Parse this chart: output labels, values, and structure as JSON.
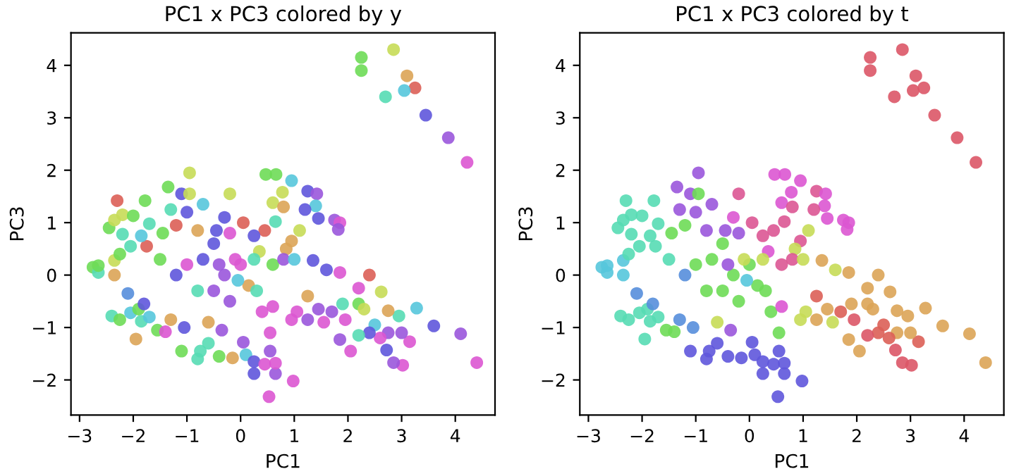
{
  "chart_data": [
    {
      "type": "scatter",
      "title": "PC1 x PC3 colored by y",
      "xlabel": "PC1",
      "ylabel": "PC3",
      "marker": "circle",
      "xlim": [
        -3.16,
        4.74
      ],
      "ylim": [
        -2.67,
        4.62
      ],
      "xticks": [
        -3,
        -2,
        -1,
        0,
        1,
        2,
        3,
        4
      ],
      "yticks": [
        -2,
        -1,
        0,
        1,
        2,
        3,
        4
      ],
      "x": [
        2.25,
        2.25,
        2.85,
        3.1,
        3.25,
        2.7,
        3.05,
        3.45,
        3.87,
        4.22,
        4.4,
        4.1,
        3.6,
        3.28,
        3.15,
        3.0,
        3.02,
        2.85,
        2.95,
        2.72,
        2.75,
        2.62,
        2.6,
        2.75,
        2.5,
        2.4,
        2.2,
        2.2,
        2.3,
        2.05,
        1.85,
        2.4,
        2.2,
        1.95,
        1.9,
        1.85,
        1.6,
        1.7,
        1.45,
        1.55,
        1.35,
        1.25,
        1.05,
        0.95,
        1.25,
        0.47,
        0.66,
        0.95,
        1.25,
        1.42,
        0.78,
        1.4,
        1.2,
        1.45,
        1.75,
        1.85,
        1.82,
        0.6,
        0.45,
        0.25,
        0.05,
        0.35,
        0.8,
        0.65,
        0.95,
        0.85,
        0.6,
        1.1,
        0.8,
        -2.75,
        -2.65,
        -2.65,
        -2.35,
        -2.35,
        -2.3,
        -2.45,
        -2.35,
        -2.2,
        -2.2,
        -2.25,
        -2.0,
        -2.05,
        -1.78,
        -1.7,
        -1.75,
        -1.85,
        -2.1,
        -2.4,
        -2.25,
        -2.05,
        -1.95,
        -1.85,
        -1.9,
        -1.7,
        -1.55,
        -1.4,
        -1.8,
        -1.1,
        -0.8,
        -0.75,
        -0.4,
        -0.15,
        0.05,
        0.1,
        0.25,
        0.25,
        0.45,
        0.55,
        0.65,
        0.65,
        0.98,
        0.53,
        0.55,
        -0.6,
        -1.05,
        -1.3,
        -0.35,
        -0.95,
        -1.35,
        -1.1,
        -0.95,
        -0.7,
        -1.3,
        -0.2,
        -0.3,
        -0.2,
        -0.45,
        -0.8,
        -1.0,
        -1.45,
        -1.2,
        -1.0,
        -0.7,
        -0.5,
        -0.3,
        0.0,
        0.15,
        0.3,
        -0.5,
        -0.8,
        -0.2,
        -0.4,
        0.4,
        -0.6,
        -1.2,
        -1.5,
        0.6,
        1.0,
        -0.1,
        0.25,
        -0.05
      ],
      "values": [
        4.15,
        3.9,
        4.3,
        3.8,
        3.57,
        3.4,
        3.52,
        3.05,
        2.62,
        2.15,
        -1.67,
        -1.12,
        -0.97,
        -0.63,
        -1.27,
        -1.1,
        -1.72,
        -1.67,
        -0.78,
        -1.43,
        -1.1,
        -0.32,
        -1.2,
        -0.68,
        -0.95,
        -1.1,
        -1.15,
        -0.55,
        -0.65,
        -1.45,
        -1.23,
        0.0,
        -0.25,
        -0.85,
        -0.55,
        0.05,
        0.1,
        -0.7,
        -0.65,
        -0.9,
        0.28,
        -0.4,
        -0.7,
        -0.85,
        -0.85,
        1.92,
        1.92,
        1.8,
        1.6,
        1.55,
        1.58,
        1.32,
        1.25,
        1.08,
        1.05,
        1.0,
        0.87,
        1.38,
        0.85,
        0.75,
        1.0,
        0.45,
        1.3,
        1.02,
        0.65,
        0.5,
        0.2,
        0.85,
        0.3,
        0.15,
        0.05,
        0.18,
        0.28,
        0.0,
        1.42,
        0.9,
        1.05,
        1.15,
        0.78,
        0.4,
        1.13,
        0.55,
        1.42,
        0.98,
        0.55,
        0.75,
        -0.35,
        -0.78,
        -0.85,
        -0.72,
        -1.22,
        -0.88,
        -0.65,
        -0.8,
        -1.05,
        -1.08,
        -0.55,
        -1.45,
        -1.6,
        -1.45,
        -1.55,
        -1.58,
        -1.28,
        -1.52,
        -1.88,
        -1.65,
        -1.7,
        -1.45,
        -1.88,
        -1.68,
        -2.02,
        -2.32,
        -1.1,
        -1.3,
        -1.0,
        -0.85,
        -1.05,
        1.95,
        1.68,
        1.55,
        1.55,
        1.35,
        1.25,
        1.55,
        1.1,
        0.8,
        0.85,
        0.85,
        1.2,
        0.8,
        0.95,
        0.2,
        0.3,
        0.6,
        0.0,
        0.2,
        -0.2,
        -0.3,
        -0.3,
        -0.3,
        -0.5,
        0.2,
        -0.7,
        -0.9,
        0.0,
        0.3,
        -0.6,
        0.3,
        0.3,
        0.3,
        -0.1
      ],
      "colors": [
        "#6edb57",
        "#6edb57",
        "#c6db57",
        "#dba457",
        "#db5f57",
        "#57dbb4",
        "#57c6db",
        "#5f57db",
        "#9a57db",
        "#db57d2",
        "#db57d2",
        "#9a57db",
        "#5f57db",
        "#57c6db",
        "#db57d2",
        "#9a57db",
        "#db57d2",
        "#9a57db",
        "#57dbb4",
        "#5f57db",
        "#9a57db",
        "#c6db57",
        "#db57d2",
        "#dba457",
        "#57c6db",
        "#5f57db",
        "#57dbb4",
        "#6edb57",
        "#c6db57",
        "#db57d2",
        "#9a57db",
        "#db5f57",
        "#db57d2",
        "#db57d2",
        "#57dbb4",
        "#db57d2",
        "#5f57db",
        "#9a57db",
        "#9a57db",
        "#db57d2",
        "#5f57db",
        "#dba457",
        "#db57d2",
        "#db57d2",
        "#9a57db",
        "#6edb57",
        "#6edb57",
        "#57c6db",
        "#5f57db",
        "#9a57db",
        "#c6db57",
        "#57c6db",
        "#5f57db",
        "#5f57db",
        "#9a57db",
        "#db57d2",
        "#9a57db",
        "#c6db57",
        "#db5f57",
        "#5f57db",
        "#db5f57",
        "#c6db57",
        "#dba457",
        "#57dbb4",
        "#dba457",
        "#dba457",
        "#6edb57",
        "#c6db57",
        "#9a57db",
        "#6edb57",
        "#57dbb4",
        "#6edb57",
        "#c6db57",
        "#dba457",
        "#db5f57",
        "#6edb57",
        "#c6db57",
        "#c6db57",
        "#57dbb4",
        "#6edb57",
        "#6edb57",
        "#57dbb4",
        "#6edb57",
        "#57dbb4",
        "#db5f57",
        "#57c6db",
        "#578edb",
        "#57dbb4",
        "#6edb57",
        "#57c6db",
        "#dba457",
        "#57dbb4",
        "#6edb57",
        "#57c6db",
        "#6edb57",
        "#db57d2",
        "#5f57db",
        "#6edb57",
        "#57dbb4",
        "#57dbb4",
        "#6edb57",
        "#dba457",
        "#9a57db",
        "#57c6db",
        "#5f57db",
        "#5f57db",
        "#db57d2",
        "#9a57db",
        "#9a57db",
        "#db57d2",
        "#db57d2",
        "#db57d2",
        "#db57d2",
        "#57dbb4",
        "#5f57db",
        "#dba457",
        "#9a57db",
        "#c6db57",
        "#6edb57",
        "#5f57db",
        "#c6db57",
        "#57c6db",
        "#57dbb4",
        "#c6db57",
        "#5f57db",
        "#db57d2",
        "#5f57db",
        "#dba457",
        "#5f57db",
        "#6edb57",
        "#db5f57",
        "#db57d2",
        "#5f57db",
        "#5f57db",
        "#9a57db",
        "#db57d2",
        "#dba457",
        "#57dbb4",
        "#9a57db",
        "#57dbb4",
        "#9a57db",
        "#9a57db",
        "#db57d2",
        "#dba457",
        "#5f57db",
        "#6edb57",
        "#db57d2",
        "#57c6db",
        "#db57d2",
        "#57dbb4",
        "#57c6db"
      ]
    },
    {
      "type": "scatter",
      "title": "PC1 x PC3 colored by t",
      "xlabel": "PC1",
      "ylabel": "PC3",
      "marker": "circle",
      "xlim": [
        -3.16,
        4.74
      ],
      "ylim": [
        -2.67,
        4.62
      ],
      "xticks": [
        -3,
        -2,
        -1,
        0,
        1,
        2,
        3,
        4
      ],
      "yticks": [
        -2,
        -1,
        0,
        1,
        2,
        3,
        4
      ],
      "x": [
        2.25,
        2.25,
        2.85,
        3.1,
        3.25,
        2.7,
        3.05,
        3.45,
        3.87,
        4.22,
        4.4,
        4.1,
        3.6,
        3.28,
        3.15,
        3.0,
        3.02,
        2.85,
        2.95,
        2.72,
        2.75,
        2.62,
        2.6,
        2.75,
        2.5,
        2.4,
        2.2,
        2.2,
        2.3,
        2.05,
        1.85,
        2.4,
        2.2,
        1.95,
        1.9,
        1.85,
        1.6,
        1.7,
        1.45,
        1.55,
        1.35,
        1.25,
        1.05,
        0.95,
        1.25,
        0.47,
        0.66,
        0.95,
        1.25,
        1.42,
        0.78,
        1.4,
        1.2,
        1.45,
        1.75,
        1.85,
        1.82,
        0.6,
        0.45,
        0.25,
        0.05,
        0.35,
        0.8,
        0.65,
        0.95,
        0.85,
        0.6,
        1.1,
        0.8,
        -2.75,
        -2.65,
        -2.65,
        -2.35,
        -2.35,
        -2.3,
        -2.45,
        -2.35,
        -2.2,
        -2.2,
        -2.25,
        -2.0,
        -2.05,
        -1.78,
        -1.7,
        -1.75,
        -1.85,
        -2.1,
        -2.4,
        -2.25,
        -2.05,
        -1.95,
        -1.85,
        -1.9,
        -1.7,
        -1.55,
        -1.4,
        -1.8,
        -1.1,
        -0.8,
        -0.75,
        -0.4,
        -0.15,
        0.05,
        0.1,
        0.25,
        0.25,
        0.45,
        0.55,
        0.65,
        0.65,
        0.98,
        0.53,
        0.55,
        -0.6,
        -1.05,
        -1.3,
        -0.35,
        -0.95,
        -1.35,
        -1.1,
        -0.95,
        -0.7,
        -1.3,
        -0.2,
        -0.3,
        -0.2,
        -0.45,
        -0.8,
        -1.0,
        -1.45,
        -1.2,
        -1.0,
        -0.7,
        -0.5,
        -0.3,
        0.0,
        0.15,
        0.3,
        -0.5,
        -0.8,
        -0.2,
        -0.4,
        0.4,
        -0.6,
        -1.2,
        -1.5,
        0.6,
        1.0,
        -0.1,
        0.25,
        -0.05
      ],
      "values": [
        4.15,
        3.9,
        4.3,
        3.8,
        3.57,
        3.4,
        3.52,
        3.05,
        2.62,
        2.15,
        -1.67,
        -1.12,
        -0.97,
        -0.63,
        -1.27,
        -1.1,
        -1.72,
        -1.67,
        -0.78,
        -1.43,
        -1.1,
        -0.32,
        -1.2,
        -0.68,
        -0.95,
        -1.1,
        -1.15,
        -0.55,
        -0.65,
        -1.45,
        -1.23,
        0.0,
        -0.25,
        -0.85,
        -0.55,
        0.05,
        0.1,
        -0.7,
        -0.65,
        -0.9,
        0.28,
        -0.4,
        -0.7,
        -0.85,
        -0.85,
        1.92,
        1.92,
        1.8,
        1.6,
        1.55,
        1.58,
        1.32,
        1.25,
        1.08,
        1.05,
        1.0,
        0.87,
        1.38,
        0.85,
        0.75,
        1.0,
        0.45,
        1.3,
        1.02,
        0.65,
        0.5,
        0.2,
        0.85,
        0.3,
        0.15,
        0.05,
        0.18,
        0.28,
        0.0,
        1.42,
        0.9,
        1.05,
        1.15,
        0.78,
        0.4,
        1.13,
        0.55,
        1.42,
        0.98,
        0.55,
        0.75,
        -0.35,
        -0.78,
        -0.85,
        -0.72,
        -1.22,
        -0.88,
        -0.65,
        -0.8,
        -1.05,
        -1.08,
        -0.55,
        -1.45,
        -1.6,
        -1.45,
        -1.55,
        -1.58,
        -1.28,
        -1.52,
        -1.88,
        -1.65,
        -1.7,
        -1.45,
        -1.88,
        -1.68,
        -2.02,
        -2.32,
        -1.1,
        -1.3,
        -1.0,
        -0.85,
        -1.05,
        1.95,
        1.68,
        1.55,
        1.55,
        1.35,
        1.25,
        1.55,
        1.1,
        0.8,
        0.85,
        0.85,
        1.2,
        0.8,
        0.95,
        0.2,
        0.3,
        0.6,
        0.0,
        0.2,
        -0.2,
        -0.3,
        -0.3,
        -0.3,
        -0.5,
        0.2,
        -0.7,
        -0.9,
        0.0,
        0.3,
        -0.6,
        0.3,
        0.3,
        0.3,
        -0.1
      ],
      "colors": [
        "#db5767",
        "#db5767",
        "#db5767",
        "#db5767",
        "#db5767",
        "#db5767",
        "#db5767",
        "#db5767",
        "#db5767",
        "#db5767",
        "#dba457",
        "#dba457",
        "#dba457",
        "#dba457",
        "#db5f57",
        "#dba457",
        "#db5767",
        "#db5767",
        "#dba457",
        "#db5767",
        "#dba457",
        "#dba457",
        "#db5f57",
        "#dba457",
        "#db5f57",
        "#db5f57",
        "#db5767",
        "#dba457",
        "#dba457",
        "#dba457",
        "#dba457",
        "#dba457",
        "#dba457",
        "#db5767",
        "#dba457",
        "#dba457",
        "#c6db57",
        "#db5f57",
        "#dba457",
        "#c6db57",
        "#dba457",
        "#db5f57",
        "#c6db57",
        "#c6db57",
        "#dba457",
        "#db57d2",
        "#db57d2",
        "#db57d2",
        "#db5794",
        "#db57d2",
        "#db57d2",
        "#db57d2",
        "#db5794",
        "#db57d2",
        "#db57d2",
        "#db57d2",
        "#db57d2",
        "#db57d2",
        "#db5794",
        "#db5794",
        "#db5794",
        "#db57d2",
        "#db5794",
        "#db5794",
        "#db5794",
        "#c6db57",
        "#db5794",
        "#c6db57",
        "#db5794",
        "#57c6db",
        "#57c6db",
        "#57c6db",
        "#57c6db",
        "#57c6db",
        "#57dbb4",
        "#57dbb4",
        "#57dbb4",
        "#57dbb4",
        "#57dbb4",
        "#57dbb4",
        "#57dbb4",
        "#57dbb4",
        "#57dbb4",
        "#57dbb4",
        "#57dbb4",
        "#57dbb4",
        "#578edb",
        "#57dbb4",
        "#57dbb4",
        "#57dbb4",
        "#57dbb4",
        "#57dbb4",
        "#57dbb4",
        "#57dbb4",
        "#6edb57",
        "#6edb57",
        "#578edb",
        "#5f57db",
        "#5f57db",
        "#5f57db",
        "#5f57db",
        "#5f57db",
        "#5f57db",
        "#5f57db",
        "#5f57db",
        "#5f57db",
        "#5f57db",
        "#5f57db",
        "#5f57db",
        "#5f57db",
        "#5f57db",
        "#5f57db",
        "#6edb57",
        "#5f57db",
        "#578edb",
        "#578edb",
        "#9a57db",
        "#9a57db",
        "#9a57db",
        "#9a57db",
        "#6edb57",
        "#9a57db",
        "#9a57db",
        "#db5794",
        "#db57d2",
        "#9a57db",
        "#9a57db",
        "#9a57db",
        "#9a57db",
        "#6edb57",
        "#6edb57",
        "#6edb57",
        "#6edb57",
        "#6edb57",
        "#6edb57",
        "#6edb57",
        "#6edb57",
        "#6edb57",
        "#6edb57",
        "#6edb57",
        "#6edb57",
        "#9a57db",
        "#6edb57",
        "#c6db57",
        "#578edb",
        "#57dbb4",
        "#db57d2",
        "#c6db57",
        "#c6db57",
        "#c6db57",
        "#57c6db"
      ]
    }
  ]
}
